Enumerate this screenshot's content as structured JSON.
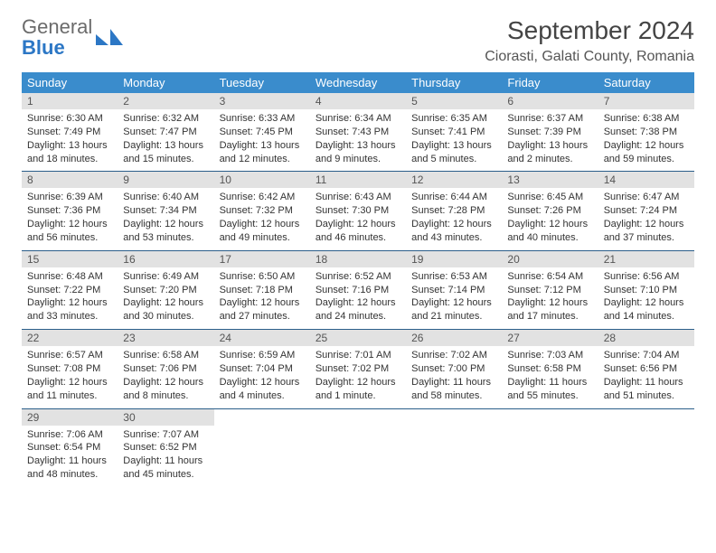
{
  "header": {
    "logo_word1": "General",
    "logo_word2": "Blue",
    "title": "September 2024",
    "subtitle": "Ciorasti, Galati County, Romania"
  },
  "weekdays": [
    "Sunday",
    "Monday",
    "Tuesday",
    "Wednesday",
    "Thursday",
    "Friday",
    "Saturday"
  ],
  "colors": {
    "header_bg": "#3a8ccc",
    "header_text": "#ffffff",
    "daynum_bg": "#e2e2e2",
    "row_border": "#2b5e8a",
    "logo_blue": "#2c77c5",
    "logo_gray": "#6b6b6b"
  },
  "days": [
    {
      "n": "1",
      "sunrise": "6:30 AM",
      "sunset": "7:49 PM",
      "daylight": "13 hours and 18 minutes."
    },
    {
      "n": "2",
      "sunrise": "6:32 AM",
      "sunset": "7:47 PM",
      "daylight": "13 hours and 15 minutes."
    },
    {
      "n": "3",
      "sunrise": "6:33 AM",
      "sunset": "7:45 PM",
      "daylight": "13 hours and 12 minutes."
    },
    {
      "n": "4",
      "sunrise": "6:34 AM",
      "sunset": "7:43 PM",
      "daylight": "13 hours and 9 minutes."
    },
    {
      "n": "5",
      "sunrise": "6:35 AM",
      "sunset": "7:41 PM",
      "daylight": "13 hours and 5 minutes."
    },
    {
      "n": "6",
      "sunrise": "6:37 AM",
      "sunset": "7:39 PM",
      "daylight": "13 hours and 2 minutes."
    },
    {
      "n": "7",
      "sunrise": "6:38 AM",
      "sunset": "7:38 PM",
      "daylight": "12 hours and 59 minutes."
    },
    {
      "n": "8",
      "sunrise": "6:39 AM",
      "sunset": "7:36 PM",
      "daylight": "12 hours and 56 minutes."
    },
    {
      "n": "9",
      "sunrise": "6:40 AM",
      "sunset": "7:34 PM",
      "daylight": "12 hours and 53 minutes."
    },
    {
      "n": "10",
      "sunrise": "6:42 AM",
      "sunset": "7:32 PM",
      "daylight": "12 hours and 49 minutes."
    },
    {
      "n": "11",
      "sunrise": "6:43 AM",
      "sunset": "7:30 PM",
      "daylight": "12 hours and 46 minutes."
    },
    {
      "n": "12",
      "sunrise": "6:44 AM",
      "sunset": "7:28 PM",
      "daylight": "12 hours and 43 minutes."
    },
    {
      "n": "13",
      "sunrise": "6:45 AM",
      "sunset": "7:26 PM",
      "daylight": "12 hours and 40 minutes."
    },
    {
      "n": "14",
      "sunrise": "6:47 AM",
      "sunset": "7:24 PM",
      "daylight": "12 hours and 37 minutes."
    },
    {
      "n": "15",
      "sunrise": "6:48 AM",
      "sunset": "7:22 PM",
      "daylight": "12 hours and 33 minutes."
    },
    {
      "n": "16",
      "sunrise": "6:49 AM",
      "sunset": "7:20 PM",
      "daylight": "12 hours and 30 minutes."
    },
    {
      "n": "17",
      "sunrise": "6:50 AM",
      "sunset": "7:18 PM",
      "daylight": "12 hours and 27 minutes."
    },
    {
      "n": "18",
      "sunrise": "6:52 AM",
      "sunset": "7:16 PM",
      "daylight": "12 hours and 24 minutes."
    },
    {
      "n": "19",
      "sunrise": "6:53 AM",
      "sunset": "7:14 PM",
      "daylight": "12 hours and 21 minutes."
    },
    {
      "n": "20",
      "sunrise": "6:54 AM",
      "sunset": "7:12 PM",
      "daylight": "12 hours and 17 minutes."
    },
    {
      "n": "21",
      "sunrise": "6:56 AM",
      "sunset": "7:10 PM",
      "daylight": "12 hours and 14 minutes."
    },
    {
      "n": "22",
      "sunrise": "6:57 AM",
      "sunset": "7:08 PM",
      "daylight": "12 hours and 11 minutes."
    },
    {
      "n": "23",
      "sunrise": "6:58 AM",
      "sunset": "7:06 PM",
      "daylight": "12 hours and 8 minutes."
    },
    {
      "n": "24",
      "sunrise": "6:59 AM",
      "sunset": "7:04 PM",
      "daylight": "12 hours and 4 minutes."
    },
    {
      "n": "25",
      "sunrise": "7:01 AM",
      "sunset": "7:02 PM",
      "daylight": "12 hours and 1 minute."
    },
    {
      "n": "26",
      "sunrise": "7:02 AM",
      "sunset": "7:00 PM",
      "daylight": "11 hours and 58 minutes."
    },
    {
      "n": "27",
      "sunrise": "7:03 AM",
      "sunset": "6:58 PM",
      "daylight": "11 hours and 55 minutes."
    },
    {
      "n": "28",
      "sunrise": "7:04 AM",
      "sunset": "6:56 PM",
      "daylight": "11 hours and 51 minutes."
    },
    {
      "n": "29",
      "sunrise": "7:06 AM",
      "sunset": "6:54 PM",
      "daylight": "11 hours and 48 minutes."
    },
    {
      "n": "30",
      "sunrise": "7:07 AM",
      "sunset": "6:52 PM",
      "daylight": "11 hours and 45 minutes."
    }
  ]
}
